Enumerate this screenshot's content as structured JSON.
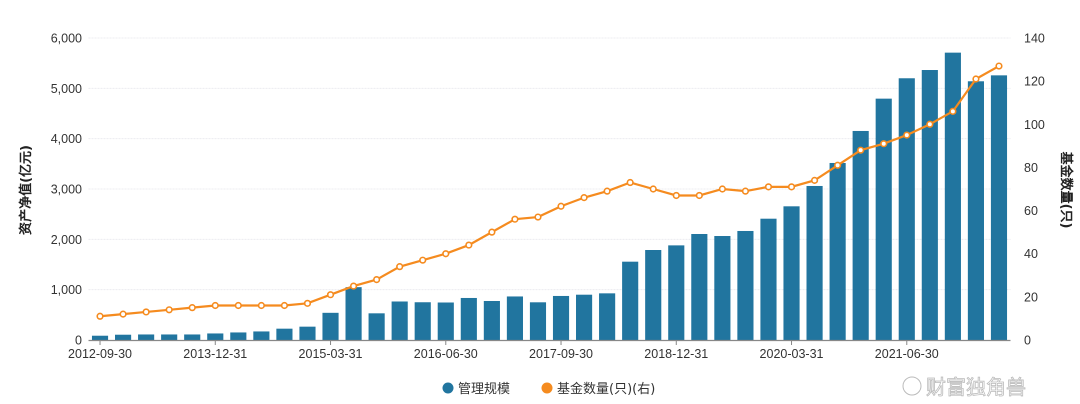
{
  "chart_data": {
    "type": "bar+line",
    "categories": [
      "2012-09-30",
      "2012-12-31",
      "2013-03-31",
      "2013-06-30",
      "2013-09-30",
      "2013-12-31",
      "2014-03-31",
      "2014-06-30",
      "2014-09-30",
      "2014-12-31",
      "2015-03-31",
      "2015-06-30",
      "2015-09-30",
      "2015-12-31",
      "2016-03-31",
      "2016-06-30",
      "2016-09-30",
      "2016-12-31",
      "2017-03-31",
      "2017-06-30",
      "2017-09-30",
      "2017-12-31",
      "2018-03-31",
      "2018-06-30",
      "2018-09-30",
      "2018-12-31",
      "2019-03-31",
      "2019-06-30",
      "2019-09-30",
      "2019-12-31",
      "2020-03-31",
      "2020-06-30",
      "2020-09-30",
      "2020-12-31",
      "2021-03-31",
      "2021-06-30",
      "2021-09-30",
      "2021-12-31",
      "2022-03-31",
      "2022-06-30"
    ],
    "x_tick_labels": [
      "2012-09-30",
      "2013-12-31",
      "2015-03-31",
      "2016-06-30",
      "2017-09-30",
      "2018-12-31",
      "2020-03-31",
      "2021-06-30"
    ],
    "series": [
      {
        "name": "管理规模",
        "type": "bar",
        "axis": "left",
        "color": "#21759f",
        "values": [
          85,
          105,
          110,
          110,
          110,
          130,
          150,
          170,
          225,
          265,
          540,
          1050,
          530,
          765,
          750,
          745,
          835,
          775,
          865,
          749,
          875,
          900,
          927,
          1556,
          1788,
          1880,
          2106,
          2066,
          2166,
          2410,
          2656,
          3060,
          3517,
          4153,
          4795,
          5200,
          5364,
          5709,
          5140,
          5258
        ]
      },
      {
        "name": "基金数量(只)(右)",
        "type": "line",
        "axis": "right",
        "color": "#f58b1f",
        "values": [
          11,
          12,
          13,
          14,
          15,
          16,
          16,
          16,
          16,
          17,
          21,
          25,
          28,
          34,
          37,
          40,
          44,
          50,
          56,
          57,
          62,
          66,
          69,
          73,
          70,
          67,
          67,
          70,
          69,
          71,
          71,
          74,
          81,
          88,
          91,
          95,
          100,
          106,
          121,
          127
        ]
      }
    ],
    "ylabel": "资产净值(亿元)",
    "y2label": "基金数量(只)",
    "ylim": [
      0,
      6000
    ],
    "y_ticks": [
      "0",
      "1,000",
      "2,000",
      "3,000",
      "4,000",
      "5,000",
      "6,000"
    ],
    "y2lim": [
      0,
      140
    ],
    "y2_ticks": [
      "0",
      "20",
      "40",
      "60",
      "80",
      "100",
      "120",
      "140"
    ],
    "legend_position": "bottom",
    "grid": true
  },
  "watermark": "财富独角兽"
}
